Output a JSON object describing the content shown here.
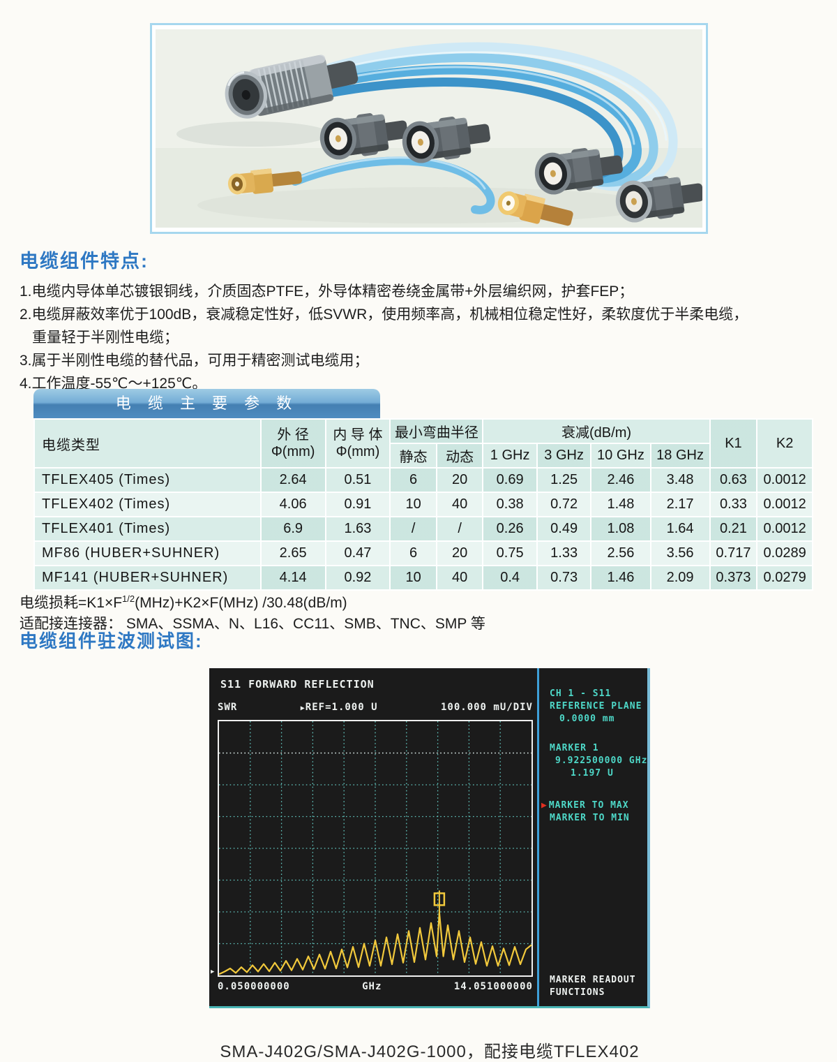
{
  "photo": {
    "alt_name": "rf-cable-assemblies-photo"
  },
  "features": {
    "title": "电缆组件特点:",
    "lines": [
      {
        "text": "1.电缆内导体单芯镀银铜线，介质固态PTFE，外导体精密卷绕金属带+外层编织网，护套FEP；",
        "cont": false
      },
      {
        "text": "2.电缆屏蔽效率优于100dB，衰减稳定性好，低SVWR，使用频率高，机械相位稳定性好，柔软度优于半柔电缆，",
        "cont": false
      },
      {
        "text": "重量轻于半刚性电缆；",
        "cont": true
      },
      {
        "text": "3.属于半刚性电缆的替代品，可用于精密测试电缆用；",
        "cont": false
      },
      {
        "text": "4.工作温度-55℃～+125℃。",
        "cont": false
      }
    ]
  },
  "table": {
    "banner": "电 缆 主 要 参 数",
    "headers": {
      "type": "电缆类型",
      "od_line1": "外  径",
      "od_line2": "Φ(mm)",
      "id_line1": "内 导 体",
      "id_line2": "Φ(mm)",
      "bend": "最小弯曲半径",
      "static": "静态",
      "dynamic": "动态",
      "atten": "衰减(dB/m)",
      "f1": "1 GHz",
      "f3": "3 GHz",
      "f10": "10 GHz",
      "f18": "18 GHz",
      "k1": "K1",
      "k2": "K2"
    },
    "rows": [
      [
        "TFLEX405 (Times)",
        "2.64",
        "0.51",
        "6",
        "20",
        "0.69",
        "1.25",
        "2.46",
        "3.48",
        "0.63",
        "0.0012"
      ],
      [
        "TFLEX402 (Times)",
        "4.06",
        "0.91",
        "10",
        "40",
        "0.38",
        "0.72",
        "1.48",
        "2.17",
        "0.33",
        "0.0012"
      ],
      [
        "TFLEX401 (Times)",
        "6.9",
        "1.63",
        "/",
        "/",
        "0.26",
        "0.49",
        "1.08",
        "1.64",
        "0.21",
        "0.0012"
      ],
      [
        "MF86 (HUBER+SUHNER)",
        "2.65",
        "0.47",
        "6",
        "20",
        "0.75",
        "1.33",
        "2.56",
        "3.56",
        "0.717",
        "0.0289"
      ],
      [
        "MF141 (HUBER+SUHNER)",
        "4.14",
        "0.92",
        "10",
        "40",
        "0.4",
        "0.73",
        "1.46",
        "2.09",
        "0.373",
        "0.0279"
      ]
    ]
  },
  "notes": {
    "formula_prefix": "电缆损耗=K1×F",
    "formula_sup": "1/2",
    "formula_suffix": "(MHz)+K2×F(MHz) /30.48(dB/m)",
    "connectors": "适配接连接器： SMA、SSMA、N、L16、CC11、SMB、TNC、SMP 等"
  },
  "vswr": {
    "title": "电缆组件驻波测试图:",
    "screen": {
      "title": "S11 FORWARD REFLECTION",
      "trace_label": "SWR",
      "arrow": "▶",
      "ref_label": "REF=1.000 U",
      "scale_label": "100.000 mU/DIV",
      "x_start": "0.050000000",
      "x_unit": "GHz",
      "x_stop": "14.051000000",
      "menu": {
        "ch": "CH 1 - S11",
        "ref_plane": "REFERENCE PLANE",
        "ref_plane_value": "0.0000 mm",
        "marker": "MARKER 1",
        "marker_freq": "9.922500000 GHz",
        "marker_value": "1.197 U",
        "to_max": "MARKER TO MAX",
        "to_min": "MARKER TO MIN",
        "readout1": "MARKER READOUT",
        "readout2": "FUNCTIONS"
      }
    }
  },
  "caption": "SMA-J402G/SMA-J402G-1000，配接电缆TFLEX402",
  "colors": {
    "heading_blue": "#2e78c3",
    "banner_top": "#9ecbe4",
    "banner_bottom": "#4e8cc0",
    "table_cell": "#d9ede8",
    "photo_border": "#a6d7ee",
    "screen_bg": "#1b1b1b",
    "screen_cyan": "#4ed8c8",
    "screen_white": "#eef2f0",
    "trace_yellow": "#f2c93c",
    "grid_cyan": "#63c9c2",
    "separator_blue": "#3ea0d8",
    "marker_arrow_red": "#e03020"
  },
  "chart_data": {
    "type": "line",
    "title": "S11 FORWARD REFLECTION",
    "xlabel": "GHz",
    "ylabel": "SWR (U)",
    "x_range": [
      0.05,
      14.051
    ],
    "ref_level": 1.0,
    "units_per_div": 0.1,
    "grid": {
      "cols": 10,
      "rows": 8,
      "on": true
    },
    "marker": {
      "x": 9.9225,
      "y": 1.197,
      "label": "MARKER 1"
    },
    "trace": [
      [
        0.05,
        1.004
      ],
      [
        0.3,
        1.012
      ],
      [
        0.55,
        1.022
      ],
      [
        0.8,
        1.008
      ],
      [
        1.05,
        1.026
      ],
      [
        1.3,
        1.01
      ],
      [
        1.55,
        1.032
      ],
      [
        1.8,
        1.012
      ],
      [
        2.05,
        1.036
      ],
      [
        2.3,
        1.013
      ],
      [
        2.55,
        1.04
      ],
      [
        2.8,
        1.015
      ],
      [
        3.05,
        1.046
      ],
      [
        3.3,
        1.016
      ],
      [
        3.55,
        1.052
      ],
      [
        3.8,
        1.018
      ],
      [
        4.05,
        1.06
      ],
      [
        4.3,
        1.02
      ],
      [
        4.55,
        1.066
      ],
      [
        4.8,
        1.021
      ],
      [
        5.05,
        1.075
      ],
      [
        5.3,
        1.022
      ],
      [
        5.55,
        1.082
      ],
      [
        5.8,
        1.025
      ],
      [
        6.05,
        1.09
      ],
      [
        6.3,
        1.026
      ],
      [
        6.55,
        1.1
      ],
      [
        6.8,
        1.03
      ],
      [
        7.05,
        1.11
      ],
      [
        7.3,
        1.03
      ],
      [
        7.55,
        1.12
      ],
      [
        7.8,
        1.035
      ],
      [
        8.05,
        1.13
      ],
      [
        8.3,
        1.04
      ],
      [
        8.55,
        1.14
      ],
      [
        8.8,
        1.042
      ],
      [
        9.05,
        1.15
      ],
      [
        9.3,
        1.05
      ],
      [
        9.55,
        1.165
      ],
      [
        9.8,
        1.06
      ],
      [
        9.9225,
        1.197
      ],
      [
        10.1,
        1.06
      ],
      [
        10.3,
        1.158
      ],
      [
        10.55,
        1.05
      ],
      [
        10.8,
        1.14
      ],
      [
        11.05,
        1.042
      ],
      [
        11.3,
        1.12
      ],
      [
        11.55,
        1.036
      ],
      [
        11.8,
        1.105
      ],
      [
        12.05,
        1.03
      ],
      [
        12.3,
        1.092
      ],
      [
        12.55,
        1.03
      ],
      [
        12.8,
        1.085
      ],
      [
        13.05,
        1.032
      ],
      [
        13.3,
        1.09
      ],
      [
        13.55,
        1.035
      ],
      [
        13.8,
        1.082
      ],
      [
        14.051,
        1.096
      ]
    ]
  }
}
